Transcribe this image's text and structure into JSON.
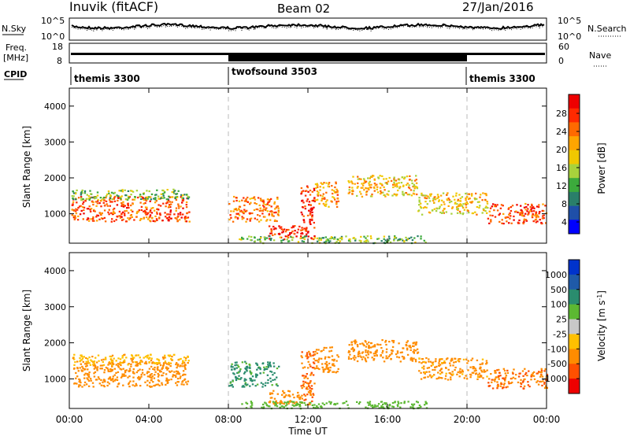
{
  "header": {
    "station": "Inuvik (fitACF)",
    "beam": "Beam 02",
    "date": "27/Jan/2016"
  },
  "left_labels": {
    "nsky": "N.Sky",
    "freq": "Freq.",
    "freq_unit": "[MHz]",
    "cpid": "CPID"
  },
  "right_labels": {
    "nsearch": "N.Search",
    "nave": "Nave"
  },
  "noise_ticks": {
    "top": "10^5",
    "bottom": "10^0"
  },
  "freq_ticks": [
    "18",
    "8"
  ],
  "nave_ticks": [
    "60",
    "0"
  ],
  "cpid_segments": [
    "themis 3300",
    "twofsound 3503",
    "themis 3300"
  ],
  "power_colorbar": {
    "label": "Power [dB]",
    "ticks": [
      "28",
      "24",
      "20",
      "16",
      "12",
      "8",
      "4"
    ]
  },
  "velocity_colorbar": {
    "label": "Velocity [m s",
    "label_sup": "-1",
    "label_end": "]",
    "ticks": [
      "1000",
      "500",
      "100",
      "25",
      "-25",
      "-100",
      "-500",
      "-1000"
    ]
  },
  "chart_data": {
    "type": "heatmap",
    "xlabel": "Time UT",
    "ylabel": "Slant Range [km]",
    "xticks": [
      "00:00",
      "04:00",
      "08:00",
      "12:00",
      "16:00",
      "20:00",
      "00:00"
    ],
    "yticks": [
      "1000",
      "2000",
      "3000",
      "4000"
    ],
    "xlim_hours": [
      0,
      24
    ],
    "ylim_km": [
      180,
      4500
    ],
    "mode_changes_hours": [
      8.0,
      20.0
    ],
    "colors": {
      "power_scale": [
        "#0000ff",
        "#1f4fa8",
        "#2a7f6a",
        "#3caa3c",
        "#a8d23c",
        "#f0c800",
        "#ffa500",
        "#ff6a00",
        "#ff2a00",
        "#ee0000"
      ],
      "velocity_scale": [
        "#0033cc",
        "#1f5aa8",
        "#2a8c6e",
        "#5cb832",
        "#c8c8c8",
        "#ffc000",
        "#ff8c00",
        "#ff5000",
        "#ee0000"
      ]
    },
    "scatter_regions": [
      {
        "t0": 0.1,
        "t1": 6.0,
        "r0": 800,
        "r1": 1500,
        "power": 24,
        "velocity": -250
      },
      {
        "t0": 0.1,
        "t1": 6.0,
        "r0": 1400,
        "r1": 1700,
        "power": 12,
        "velocity": -80
      },
      {
        "t0": 8.0,
        "t1": 10.5,
        "r0": 800,
        "r1": 1500,
        "power": 22,
        "velocity": 150
      },
      {
        "t0": 10.0,
        "t1": 11.7,
        "r0": 300,
        "r1": 700,
        "power": 26,
        "velocity": -350
      },
      {
        "t0": 11.6,
        "t1": 12.3,
        "r0": 300,
        "r1": 1800,
        "power": 27,
        "velocity": -500
      },
      {
        "t0": 12.3,
        "t1": 13.5,
        "r0": 1200,
        "r1": 1900,
        "power": 20,
        "velocity": -200
      },
      {
        "t0": 14.0,
        "t1": 17.5,
        "r0": 1500,
        "r1": 2100,
        "power": 18,
        "velocity": -300
      },
      {
        "t0": 17.5,
        "t1": 21.0,
        "r0": 1000,
        "r1": 1600,
        "power": 17,
        "velocity": -150
      },
      {
        "t0": 21.0,
        "t1": 24.0,
        "r0": 750,
        "r1": 1300,
        "power": 25,
        "velocity": -450
      },
      {
        "t0": 8.5,
        "t1": 18.0,
        "r0": 200,
        "r1": 400,
        "power": 12,
        "velocity": 60
      }
    ]
  }
}
